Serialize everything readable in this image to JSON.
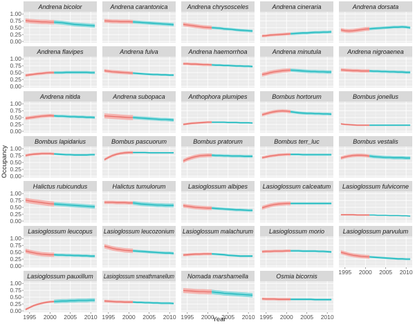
{
  "chart_data": {
    "type": "line",
    "title": "",
    "xlabel": "Year",
    "ylabel": "Occupancy",
    "xlim": [
      1993.5,
      2011.5
    ],
    "ylim": [
      -0.05,
      1.08
    ],
    "x_ticks": [
      1995,
      2000,
      2005,
      2010
    ],
    "x_tick_labels": [
      "1995",
      "2000",
      "2005",
      "2010"
    ],
    "y_ticks": [
      0,
      0.25,
      0.5,
      0.75,
      1.0
    ],
    "y_tick_labels": [
      "0.00",
      "0.25",
      "0.50",
      "0.75",
      "1.00"
    ],
    "grid": true,
    "colors": {
      "series_a_line": "#e8706a",
      "series_a_band": "#f6a9a4",
      "series_b_line": "#1ab8bd",
      "series_b_band": "#79d6d9",
      "panel_bg": "#ebebeb",
      "strip_bg": "#d9d9d9",
      "grid_major": "#ffffff"
    },
    "series_a_x": [
      1994,
      2001
    ],
    "series_b_x": [
      2001,
      2011
    ],
    "panels": [
      {
        "title": "Andrena bicolor",
        "a": [
          0.76,
          0.74,
          0.73,
          0.72,
          0.71,
          0.71,
          0.7,
          0.7
        ],
        "a_band": 0.08,
        "b": [
          0.7,
          0.69,
          0.68,
          0.66,
          0.64,
          0.62,
          0.61,
          0.6,
          0.59,
          0.58,
          0.57
        ],
        "b_band": 0.07
      },
      {
        "title": "Andrena carantonica",
        "a": [
          0.75,
          0.74,
          0.73,
          0.73,
          0.72,
          0.72,
          0.72,
          0.71
        ],
        "a_band": 0.07,
        "b": [
          0.71,
          0.7,
          0.69,
          0.68,
          0.67,
          0.66,
          0.65,
          0.64,
          0.63,
          0.62,
          0.61
        ],
        "b_band": 0.06
      },
      {
        "title": "Andrena chrysosceles",
        "a": [
          0.62,
          0.6,
          0.58,
          0.56,
          0.54,
          0.52,
          0.51,
          0.5
        ],
        "a_band": 0.07,
        "b": [
          0.5,
          0.49,
          0.48,
          0.46,
          0.45,
          0.44,
          0.42,
          0.41,
          0.4,
          0.39,
          0.38
        ],
        "b_band": 0.05
      },
      {
        "title": "Andrena cineraria",
        "a": [
          0.2,
          0.21,
          0.23,
          0.24,
          0.25,
          0.26,
          0.27,
          0.28
        ],
        "a_band": 0.05,
        "b": [
          0.28,
          0.29,
          0.3,
          0.31,
          0.31,
          0.32,
          0.33,
          0.33,
          0.34,
          0.34,
          0.35
        ],
        "b_band": 0.05
      },
      {
        "title": "Andrena dorsata",
        "a": [
          0.42,
          0.39,
          0.38,
          0.39,
          0.41,
          0.43,
          0.45,
          0.46
        ],
        "a_band": 0.07,
        "b": [
          0.46,
          0.47,
          0.48,
          0.49,
          0.5,
          0.51,
          0.52,
          0.52,
          0.53,
          0.52,
          0.5
        ],
        "b_band": 0.05
      },
      {
        "title": "Andrena flavipes",
        "a": [
          0.4,
          0.42,
          0.44,
          0.46,
          0.47,
          0.49,
          0.5,
          0.5
        ],
        "a_band": 0.05,
        "b": [
          0.5,
          0.5,
          0.5,
          0.51,
          0.51,
          0.51,
          0.51,
          0.51,
          0.51,
          0.5,
          0.5
        ],
        "b_band": 0.05
      },
      {
        "title": "Andrena fulva",
        "a": [
          0.57,
          0.55,
          0.53,
          0.52,
          0.51,
          0.5,
          0.49,
          0.48
        ],
        "a_band": 0.06,
        "b": [
          0.48,
          0.47,
          0.46,
          0.45,
          0.44,
          0.43,
          0.43,
          0.42,
          0.42,
          0.41,
          0.41
        ],
        "b_band": 0.04
      },
      {
        "title": "Andrena haemorrhoa",
        "a": [
          0.82,
          0.82,
          0.81,
          0.81,
          0.8,
          0.79,
          0.79,
          0.78
        ],
        "a_band": 0.05,
        "b": [
          0.78,
          0.77,
          0.77,
          0.76,
          0.76,
          0.75,
          0.74,
          0.74,
          0.73,
          0.73,
          0.72
        ],
        "b_band": 0.04
      },
      {
        "title": "Andrena minutula",
        "a": [
          0.43,
          0.46,
          0.5,
          0.53,
          0.55,
          0.57,
          0.58,
          0.59
        ],
        "a_band": 0.07,
        "b": [
          0.59,
          0.58,
          0.57,
          0.56,
          0.55,
          0.54,
          0.54,
          0.53,
          0.53,
          0.52,
          0.52
        ],
        "b_band": 0.06
      },
      {
        "title": "Andrena nigroaenea",
        "a": [
          0.6,
          0.59,
          0.58,
          0.57,
          0.57,
          0.56,
          0.56,
          0.56
        ],
        "a_band": 0.06,
        "b": [
          0.56,
          0.55,
          0.55,
          0.54,
          0.54,
          0.53,
          0.53,
          0.52,
          0.52,
          0.51,
          0.51
        ],
        "b_band": 0.05
      },
      {
        "title": "Andrena nitida",
        "a": [
          0.47,
          0.49,
          0.51,
          0.53,
          0.55,
          0.56,
          0.57,
          0.56
        ],
        "a_band": 0.06,
        "b": [
          0.56,
          0.55,
          0.55,
          0.54,
          0.53,
          0.53,
          0.52,
          0.52,
          0.51,
          0.51,
          0.5
        ],
        "b_band": 0.05
      },
      {
        "title": "Andrena subopaca",
        "a": [
          0.56,
          0.55,
          0.54,
          0.53,
          0.52,
          0.51,
          0.5,
          0.5
        ],
        "a_band": 0.09,
        "b": [
          0.5,
          0.49,
          0.48,
          0.47,
          0.46,
          0.45,
          0.44,
          0.43,
          0.43,
          0.42,
          0.41
        ],
        "b_band": 0.06
      },
      {
        "title": "Anthophora plumipes",
        "a": [
          0.25,
          0.27,
          0.29,
          0.3,
          0.31,
          0.32,
          0.33,
          0.33
        ],
        "a_band": 0.04,
        "b": [
          0.33,
          0.33,
          0.33,
          0.33,
          0.32,
          0.32,
          0.32,
          0.31,
          0.31,
          0.31,
          0.3
        ],
        "b_band": 0.03
      },
      {
        "title": "Bombus hortorum",
        "a": [
          0.6,
          0.64,
          0.68,
          0.71,
          0.73,
          0.74,
          0.73,
          0.71
        ],
        "a_band": 0.06,
        "b": [
          0.71,
          0.69,
          0.67,
          0.66,
          0.65,
          0.65,
          0.64,
          0.64,
          0.63,
          0.63,
          0.62
        ],
        "b_band": 0.05
      },
      {
        "title": "Bombus jonellus",
        "a": [
          0.27,
          0.25,
          0.24,
          0.23,
          0.22,
          0.22,
          0.22,
          0.22
        ],
        "a_band": 0.03,
        "b": [
          0.22,
          0.22,
          0.22,
          0.22,
          0.22,
          0.22,
          0.22,
          0.22,
          0.22,
          0.22,
          0.22
        ],
        "b_band": 0.03
      },
      {
        "title": "Bombus lapidarius",
        "a": [
          0.75,
          0.78,
          0.8,
          0.81,
          0.82,
          0.82,
          0.82,
          0.81
        ],
        "a_band": 0.05,
        "b": [
          0.81,
          0.8,
          0.79,
          0.78,
          0.78,
          0.77,
          0.77,
          0.77,
          0.77,
          0.78,
          0.78
        ],
        "b_band": 0.04
      },
      {
        "title": "Bombus pascuorum",
        "a": [
          0.6,
          0.68,
          0.75,
          0.8,
          0.83,
          0.85,
          0.86,
          0.86
        ],
        "a_band": 0.05,
        "b": [
          0.86,
          0.86,
          0.86,
          0.86,
          0.85,
          0.85,
          0.85,
          0.85,
          0.85,
          0.85,
          0.85
        ],
        "b_band": 0.03
      },
      {
        "title": "Bombus pratorum",
        "a": [
          0.55,
          0.62,
          0.67,
          0.71,
          0.74,
          0.75,
          0.76,
          0.76
        ],
        "a_band": 0.07,
        "b": [
          0.76,
          0.75,
          0.75,
          0.74,
          0.74,
          0.73,
          0.73,
          0.73,
          0.72,
          0.72,
          0.72
        ],
        "b_band": 0.05
      },
      {
        "title": "Bombus terr_luc",
        "a": [
          0.67,
          0.7,
          0.73,
          0.75,
          0.77,
          0.78,
          0.79,
          0.79
        ],
        "a_band": 0.05,
        "b": [
          0.79,
          0.79,
          0.79,
          0.78,
          0.78,
          0.78,
          0.78,
          0.78,
          0.78,
          0.78,
          0.78
        ],
        "b_band": 0.04
      },
      {
        "title": "Bombus vestalis",
        "a": [
          0.66,
          0.7,
          0.73,
          0.75,
          0.76,
          0.76,
          0.75,
          0.73
        ],
        "a_band": 0.06,
        "b": [
          0.73,
          0.71,
          0.7,
          0.69,
          0.68,
          0.68,
          0.67,
          0.67,
          0.67,
          0.66,
          0.66
        ],
        "b_band": 0.06
      },
      {
        "title": "Halictus rubicundus",
        "a": [
          0.76,
          0.73,
          0.71,
          0.69,
          0.67,
          0.65,
          0.63,
          0.62
        ],
        "a_band": 0.09,
        "b": [
          0.62,
          0.61,
          0.6,
          0.59,
          0.58,
          0.57,
          0.56,
          0.55,
          0.54,
          0.53,
          0.52
        ],
        "b_band": 0.07
      },
      {
        "title": "Halictus tumulorum",
        "a": [
          0.68,
          0.68,
          0.68,
          0.67,
          0.67,
          0.67,
          0.66,
          0.66
        ],
        "a_band": 0.06,
        "b": [
          0.66,
          0.64,
          0.62,
          0.61,
          0.6,
          0.59,
          0.58,
          0.58,
          0.57,
          0.57,
          0.57
        ],
        "b_band": 0.07
      },
      {
        "title": "Lasioglossum albipes",
        "a": [
          0.56,
          0.54,
          0.52,
          0.5,
          0.49,
          0.48,
          0.47,
          0.47
        ],
        "a_band": 0.07,
        "b": [
          0.47,
          0.46,
          0.45,
          0.44,
          0.43,
          0.42,
          0.41,
          0.41,
          0.4,
          0.39,
          0.39
        ],
        "b_band": 0.05
      },
      {
        "title": "Lasioglossum calceatum",
        "a": [
          0.48,
          0.53,
          0.57,
          0.6,
          0.62,
          0.63,
          0.64,
          0.64
        ],
        "a_band": 0.07,
        "b": [
          0.64,
          0.64,
          0.64,
          0.64,
          0.64,
          0.64,
          0.64,
          0.64,
          0.64,
          0.64,
          0.64
        ],
        "b_band": 0.04
      },
      {
        "title": "Lasioglossum fulvicorne",
        "a": [
          0.23,
          0.23,
          0.23,
          0.23,
          0.22,
          0.22,
          0.22,
          0.22
        ],
        "a_band": 0.03,
        "b": [
          0.22,
          0.22,
          0.21,
          0.21,
          0.21,
          0.2,
          0.2,
          0.2,
          0.19,
          0.19,
          0.18
        ],
        "b_band": 0.02
      },
      {
        "title": "Lasioglossum leucopus",
        "a": [
          0.55,
          0.51,
          0.48,
          0.45,
          0.43,
          0.42,
          0.41,
          0.41
        ],
        "a_band": 0.08,
        "b": [
          0.41,
          0.4,
          0.4,
          0.39,
          0.39,
          0.38,
          0.38,
          0.37,
          0.37,
          0.36,
          0.36
        ],
        "b_band": 0.05
      },
      {
        "title": "Lasioglossum leucozonium",
        "a": [
          0.72,
          0.68,
          0.64,
          0.61,
          0.59,
          0.57,
          0.56,
          0.55
        ],
        "a_band": 0.08,
        "b": [
          0.55,
          0.54,
          0.53,
          0.52,
          0.51,
          0.5,
          0.49,
          0.48,
          0.47,
          0.47,
          0.46
        ],
        "b_band": 0.05
      },
      {
        "title": "Lasioglossum malachurum",
        "a": [
          0.4,
          0.41,
          0.42,
          0.43,
          0.43,
          0.44,
          0.44,
          0.44
        ],
        "a_band": 0.05,
        "b": [
          0.44,
          0.43,
          0.42,
          0.41,
          0.39,
          0.38,
          0.37,
          0.36,
          0.36,
          0.36,
          0.36
        ],
        "b_band": 0.04
      },
      {
        "title": "Lasioglossum morio",
        "a": [
          0.52,
          0.53,
          0.53,
          0.54,
          0.54,
          0.54,
          0.55,
          0.55
        ],
        "a_band": 0.05,
        "b": [
          0.55,
          0.55,
          0.55,
          0.54,
          0.54,
          0.54,
          0.54,
          0.53,
          0.53,
          0.52,
          0.51
        ],
        "b_band": 0.04
      },
      {
        "title": "Lasioglossum parvulum",
        "a": [
          0.5,
          0.46,
          0.42,
          0.39,
          0.37,
          0.35,
          0.34,
          0.33
        ],
        "a_band": 0.07,
        "b": [
          0.33,
          0.32,
          0.31,
          0.3,
          0.29,
          0.28,
          0.27,
          0.26,
          0.26,
          0.25,
          0.25
        ],
        "b_band": 0.04
      },
      {
        "title": "Lasioglossum pauxillum",
        "a": [
          0.05,
          0.12,
          0.19,
          0.24,
          0.28,
          0.31,
          0.33,
          0.34
        ],
        "a_band": 0.04,
        "b": [
          0.34,
          0.35,
          0.36,
          0.36,
          0.37,
          0.37,
          0.38,
          0.38,
          0.38,
          0.39,
          0.39
        ],
        "b_band": 0.07
      },
      {
        "title": "Lasioglossum smeathmanellum",
        "a": [
          0.36,
          0.35,
          0.34,
          0.33,
          0.33,
          0.32,
          0.32,
          0.32
        ],
        "a_band": 0.05,
        "b": [
          0.32,
          0.31,
          0.31,
          0.3,
          0.3,
          0.29,
          0.29,
          0.28,
          0.28,
          0.28,
          0.27
        ],
        "b_band": 0.04
      },
      {
        "title": "Nomada marshamella",
        "a": [
          0.74,
          0.73,
          0.72,
          0.71,
          0.7,
          0.7,
          0.69,
          0.69
        ],
        "a_band": 0.09,
        "b": [
          0.69,
          0.67,
          0.66,
          0.64,
          0.63,
          0.62,
          0.61,
          0.6,
          0.59,
          0.58,
          0.57
        ],
        "b_band": 0.08
      },
      {
        "title": "Osmia bicornis",
        "a": [
          0.44,
          0.43,
          0.43,
          0.43,
          0.42,
          0.42,
          0.42,
          0.42
        ],
        "a_band": 0.05,
        "b": [
          0.42,
          0.42,
          0.42,
          0.42,
          0.42,
          0.42,
          0.41,
          0.41,
          0.41,
          0.41,
          0.41
        ],
        "b_band": 0.04
      }
    ]
  }
}
